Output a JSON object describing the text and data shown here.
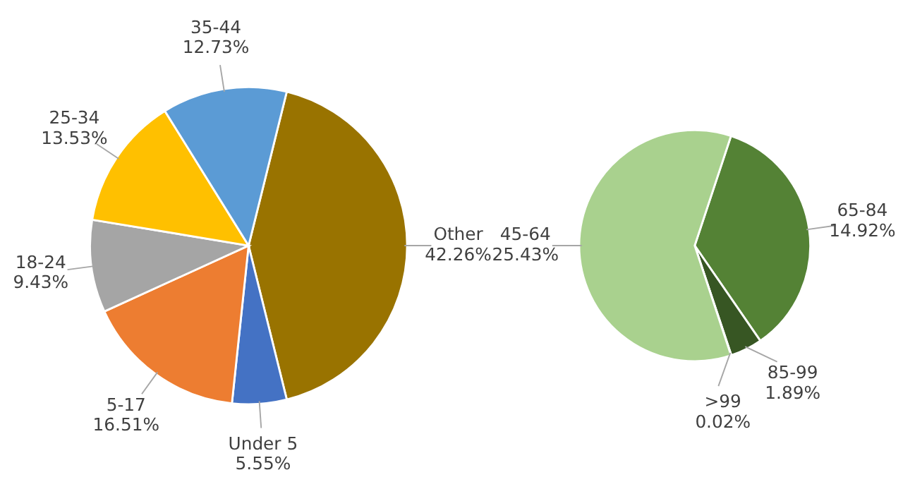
{
  "chart_data": [
    {
      "type": "pie",
      "categories": [
        "Other",
        "Under 5",
        "5-17",
        "18-24",
        "25-34",
        "35-44"
      ],
      "values": [
        42.26,
        5.55,
        16.51,
        9.43,
        13.53,
        12.73
      ],
      "value_labels": [
        "42.26%",
        "5.55%",
        "16.51%",
        "9.43%",
        "13.53%",
        "12.73%"
      ],
      "colors": [
        "#997300",
        "#4472c4",
        "#ed7d31",
        "#a5a5a5",
        "#ffc000",
        "#5b9bd5"
      ]
    },
    {
      "type": "pie",
      "categories": [
        "65-84",
        "85-99",
        ">99",
        "45-64"
      ],
      "values": [
        14.92,
        1.89,
        0.02,
        25.43
      ],
      "value_labels": [
        "14.92%",
        "1.89%",
        "0.02%",
        "25.43%"
      ],
      "colors": [
        "#548235",
        "#375623",
        "#70ad47",
        "#a9d18e"
      ]
    }
  ]
}
